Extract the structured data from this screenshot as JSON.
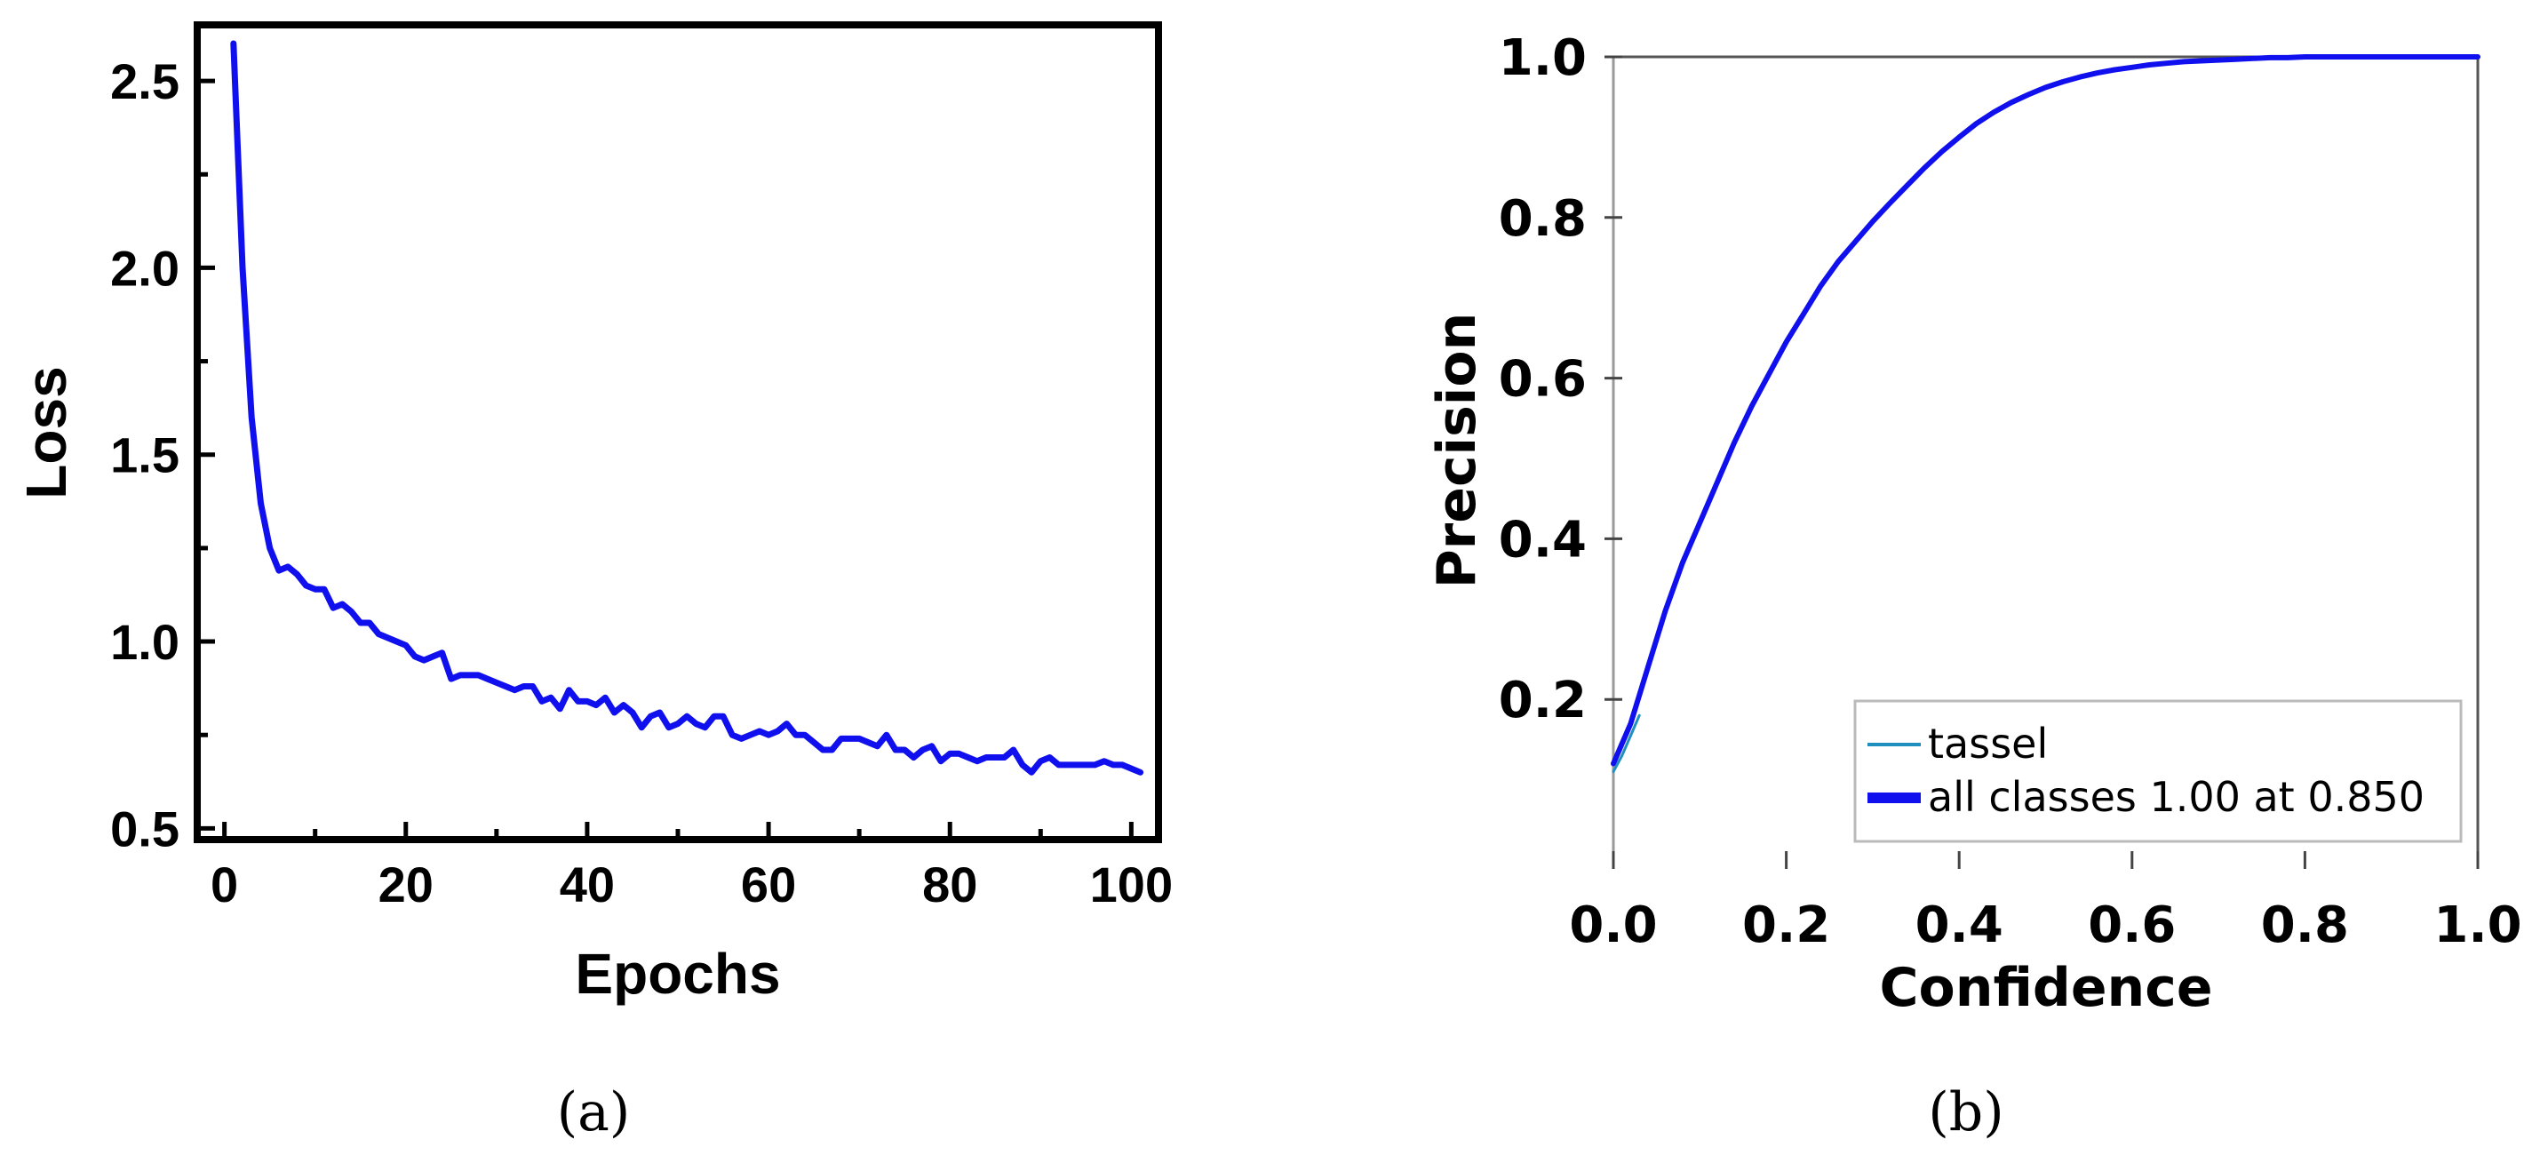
{
  "chart_data": [
    {
      "type": "line",
      "panel_label": "(a)",
      "xlabel": "Epochs",
      "ylabel": "Loss",
      "xlim": [
        -3,
        103
      ],
      "ylim": [
        0.47,
        2.65
      ],
      "xticks": [
        0,
        20,
        40,
        60,
        80,
        100
      ],
      "xtick_labels": [
        "0",
        "20",
        "40",
        "60",
        "80",
        "100"
      ],
      "yticks": [
        0.5,
        1.0,
        1.5,
        2.0,
        2.5
      ],
      "ytick_labels": [
        "0.5",
        "1.0",
        "1.5",
        "2.0",
        "2.5"
      ],
      "yminor": [
        0.75,
        1.25,
        1.75,
        2.25
      ],
      "grid": false,
      "series": [
        {
          "color": "#1010ee",
          "x": [
            1,
            2,
            3,
            4,
            5,
            6,
            7,
            8,
            9,
            10,
            11,
            12,
            13,
            14,
            15,
            16,
            17,
            18,
            19,
            20,
            21,
            22,
            23,
            24,
            25,
            26,
            27,
            28,
            29,
            30,
            31,
            32,
            33,
            34,
            35,
            36,
            37,
            38,
            39,
            40,
            41,
            42,
            43,
            44,
            45,
            46,
            47,
            48,
            49,
            50,
            51,
            52,
            53,
            54,
            55,
            56,
            57,
            58,
            59,
            60,
            61,
            62,
            63,
            64,
            65,
            66,
            67,
            68,
            69,
            70,
            71,
            72,
            73,
            74,
            75,
            76,
            77,
            78,
            79,
            80,
            81,
            82,
            83,
            84,
            85,
            86,
            87,
            88,
            89,
            90,
            91,
            92,
            93,
            94,
            95,
            96,
            97,
            98,
            99,
            100,
            101
          ],
          "y": [
            2.6,
            2.0,
            1.6,
            1.37,
            1.25,
            1.19,
            1.2,
            1.18,
            1.15,
            1.14,
            1.14,
            1.09,
            1.1,
            1.08,
            1.05,
            1.05,
            1.02,
            1.01,
            1.0,
            0.99,
            0.96,
            0.95,
            0.96,
            0.97,
            0.9,
            0.91,
            0.91,
            0.91,
            0.9,
            0.89,
            0.88,
            0.87,
            0.88,
            0.88,
            0.84,
            0.85,
            0.82,
            0.87,
            0.84,
            0.84,
            0.83,
            0.85,
            0.81,
            0.83,
            0.81,
            0.77,
            0.8,
            0.81,
            0.77,
            0.78,
            0.8,
            0.78,
            0.77,
            0.8,
            0.8,
            0.75,
            0.74,
            0.75,
            0.76,
            0.75,
            0.76,
            0.78,
            0.75,
            0.75,
            0.73,
            0.71,
            0.71,
            0.74,
            0.74,
            0.74,
            0.73,
            0.72,
            0.75,
            0.71,
            0.71,
            0.69,
            0.71,
            0.72,
            0.68,
            0.7,
            0.7,
            0.69,
            0.68,
            0.69,
            0.69,
            0.69,
            0.71,
            0.67,
            0.65,
            0.68,
            0.69,
            0.67,
            0.67,
            0.67,
            0.67,
            0.67,
            0.68,
            0.67,
            0.67,
            0.66,
            0.65
          ]
        }
      ]
    },
    {
      "type": "line",
      "panel_label": "(b)",
      "xlabel": "Confidence",
      "ylabel": "Precision",
      "xlim": [
        0.0,
        1.0
      ],
      "ylim": [
        0.0,
        1.0
      ],
      "xticks": [
        0.0,
        0.2,
        0.4,
        0.6,
        0.8,
        1.0
      ],
      "xtick_labels": [
        "0.0",
        "0.2",
        "0.4",
        "0.6",
        "0.8",
        "1.0"
      ],
      "yticks": [
        0.2,
        0.4,
        0.6,
        0.8,
        1.0
      ],
      "ytick_labels": [
        "0.2",
        "0.4",
        "0.6",
        "0.8",
        "1.0"
      ],
      "grid": false,
      "legend_position": "bottom-right",
      "series": [
        {
          "name": "tassel",
          "color": "#1f8fbf",
          "line_width": 3,
          "x": [
            0.0,
            0.01,
            0.02,
            0.03
          ],
          "y": [
            0.11,
            0.13,
            0.155,
            0.18
          ]
        },
        {
          "name": "all classes 1.00 at 0.850",
          "color": "#1010ee",
          "line_width": 6,
          "x": [
            0.0,
            0.02,
            0.04,
            0.06,
            0.08,
            0.1,
            0.12,
            0.14,
            0.16,
            0.18,
            0.2,
            0.22,
            0.24,
            0.26,
            0.28,
            0.3,
            0.32,
            0.34,
            0.36,
            0.38,
            0.4,
            0.42,
            0.44,
            0.46,
            0.48,
            0.5,
            0.52,
            0.54,
            0.56,
            0.58,
            0.6,
            0.62,
            0.64,
            0.66,
            0.68,
            0.7,
            0.72,
            0.74,
            0.76,
            0.78,
            0.8,
            0.85,
            0.9,
            0.95,
            1.0
          ],
          "y": [
            0.12,
            0.17,
            0.24,
            0.31,
            0.37,
            0.42,
            0.47,
            0.52,
            0.565,
            0.605,
            0.645,
            0.68,
            0.715,
            0.745,
            0.77,
            0.795,
            0.818,
            0.84,
            0.862,
            0.882,
            0.9,
            0.917,
            0.931,
            0.943,
            0.953,
            0.962,
            0.969,
            0.975,
            0.98,
            0.984,
            0.987,
            0.99,
            0.992,
            0.994,
            0.995,
            0.996,
            0.997,
            0.998,
            0.999,
            0.999,
            1.0,
            1.0,
            1.0,
            1.0,
            1.0
          ]
        }
      ]
    }
  ]
}
